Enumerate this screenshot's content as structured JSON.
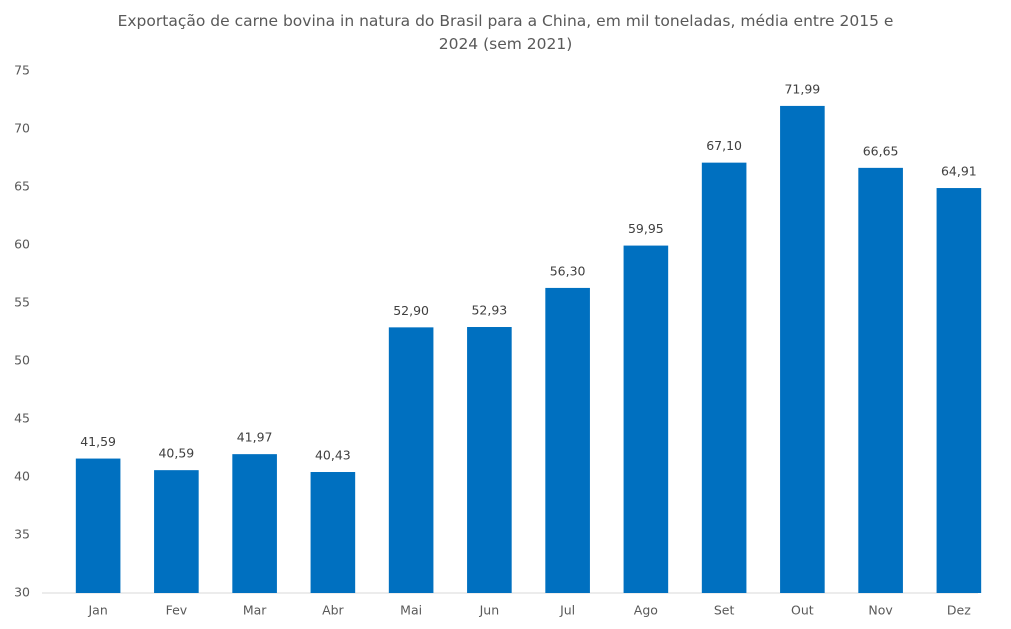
{
  "chart_data": {
    "type": "bar",
    "title": "Exportação de carne bovina in natura do Brasil para a China, em mil toneladas, média entre 2015 e 2024 (sem 2021)",
    "categories": [
      "Jan",
      "Fev",
      "Mar",
      "Abr",
      "Mai",
      "Jun",
      "Jul",
      "Ago",
      "Set",
      "Out",
      "Nov",
      "Dez"
    ],
    "values": [
      41.59,
      40.59,
      41.97,
      40.43,
      52.9,
      52.93,
      56.3,
      59.95,
      67.1,
      71.99,
      66.65,
      64.91
    ],
    "value_labels": [
      "41,59",
      "40,59",
      "41,97",
      "40,43",
      "52,90",
      "52,93",
      "56,30",
      "59,95",
      "67,10",
      "71,99",
      "66,65",
      "64,91"
    ],
    "color": "#0070c0",
    "ylim": [
      30,
      75
    ],
    "yticks": [
      30,
      35,
      40,
      45,
      50,
      55,
      60,
      65,
      70,
      75
    ],
    "grid": false
  }
}
